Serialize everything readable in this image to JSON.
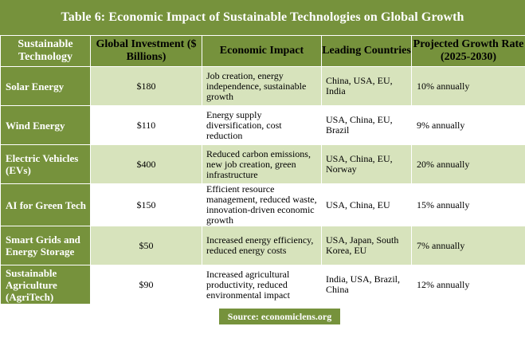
{
  "title": "Table 6: Economic Impact of Sustainable Technologies on Global Growth",
  "colors": {
    "header_green": "#76923c",
    "row_light_green": "#d7e3bc",
    "row_white": "#ffffff",
    "text_white": "#ffffff"
  },
  "headers": [
    "Sustainable Technology",
    "Global Investment ($ Billions)",
    "Economic Impact",
    "Leading Countries",
    "Projected Growth Rate (2025-2030)"
  ],
  "rows": [
    {
      "technology": "Solar Energy",
      "investment": "$180",
      "impact": "Job creation, energy independence, sustainable growth",
      "countries": "China, USA, EU, India",
      "growth": "10% annually"
    },
    {
      "technology": "Wind Energy",
      "investment": "$110",
      "impact": "Energy supply diversification, cost reduction",
      "countries": "USA, China, EU, Brazil",
      "growth": "9% annually"
    },
    {
      "technology": "Electric Vehicles (EVs)",
      "investment": "$400",
      "impact": "Reduced carbon emissions, new job creation, green infrastructure",
      "countries": "USA, China, EU, Norway",
      "growth": "20% annually"
    },
    {
      "technology": "AI for Green Tech",
      "investment": "$150",
      "impact": "Efficient resource management, reduced waste, innovation-driven economic growth",
      "countries": "USA, China, EU",
      "growth": "15% annually"
    },
    {
      "technology": "Smart Grids and Energy Storage",
      "investment": "$50",
      "impact": "Increased energy efficiency, reduced energy costs",
      "countries": "USA, Japan, South Korea, EU",
      "growth": "7% annually"
    },
    {
      "technology": "Sustainable Agriculture (AgriTech)",
      "investment": "$90",
      "impact": "Increased agricultural productivity, reduced environmental impact",
      "countries": "India, USA, Brazil, China",
      "growth": "12% annually"
    }
  ],
  "source": "Source: economiclens.org"
}
